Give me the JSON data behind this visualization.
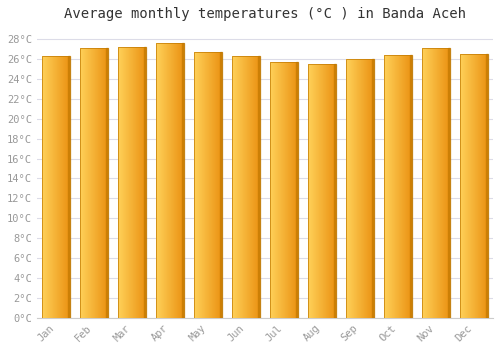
{
  "title": "Average monthly temperatures (°C ) in Banda Aceh",
  "months": [
    "Jan",
    "Feb",
    "Mar",
    "Apr",
    "May",
    "Jun",
    "Jul",
    "Aug",
    "Sep",
    "Oct",
    "Nov",
    "Dec"
  ],
  "temperatures": [
    26.3,
    27.1,
    27.2,
    27.6,
    26.7,
    26.3,
    25.7,
    25.5,
    26.0,
    26.4,
    27.1,
    26.5
  ],
  "bar_color_left": "#FFD060",
  "bar_color_right": "#E89010",
  "bar_edge_color": "#C07800",
  "background_color": "#FFFFFF",
  "plot_bg_color": "#FFFFFF",
  "grid_color": "#DCDCE8",
  "ylim": [
    0,
    29
  ],
  "yticks": [
    0,
    2,
    4,
    6,
    8,
    10,
    12,
    14,
    16,
    18,
    20,
    22,
    24,
    26,
    28
  ],
  "ytick_labels": [
    "0°C",
    "2°C",
    "4°C",
    "6°C",
    "8°C",
    "10°C",
    "12°C",
    "14°C",
    "16°C",
    "18°C",
    "20°C",
    "22°C",
    "24°C",
    "26°C",
    "28°C"
  ],
  "title_fontsize": 10,
  "tick_fontsize": 7.5,
  "tick_color": "#999999",
  "bar_width": 0.72
}
